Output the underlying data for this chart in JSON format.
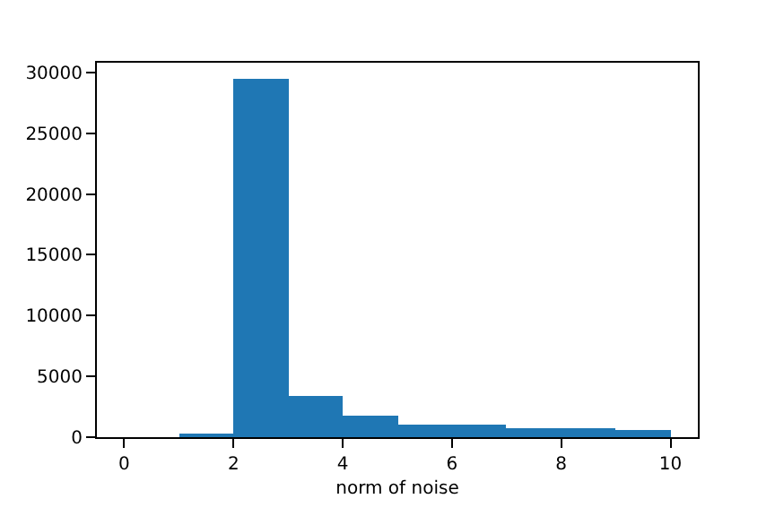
{
  "chart_data": {
    "type": "histogram",
    "xlabel": "norm of noise",
    "bins": [
      0,
      1,
      2,
      3,
      4,
      5,
      6,
      7,
      8,
      9,
      10
    ],
    "values": [
      0,
      200,
      29500,
      3400,
      1700,
      1100,
      1000,
      700,
      700,
      600
    ],
    "color": "#1f77b4",
    "xlim": [
      -0.5,
      10.5
    ],
    "xticks": [
      0,
      2,
      4,
      6,
      8,
      10
    ],
    "ylim": [
      0,
      30800
    ],
    "yticks": [
      0,
      5000,
      10000,
      15000,
      20000,
      25000,
      30000
    ]
  }
}
